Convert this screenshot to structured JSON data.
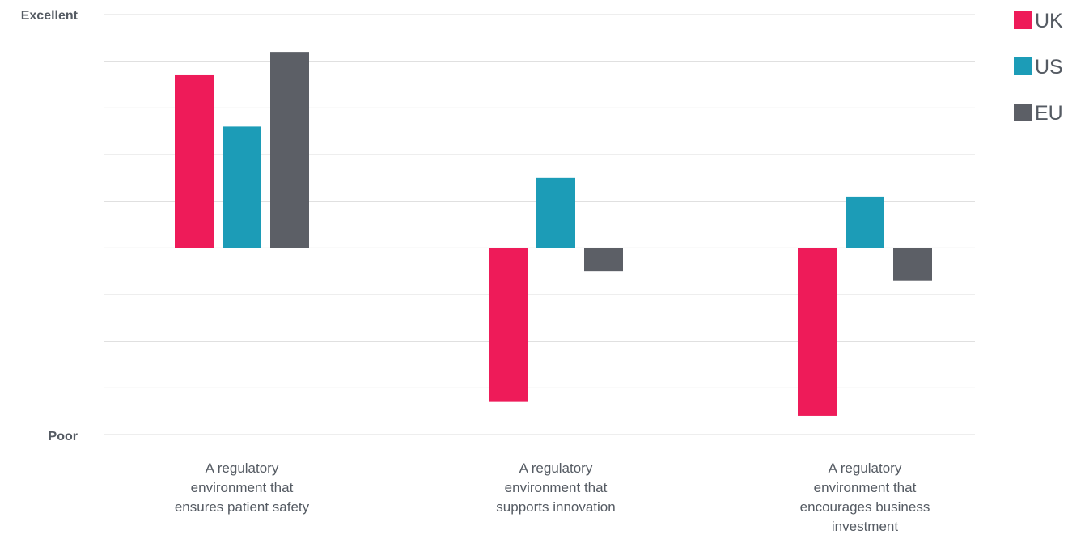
{
  "chart_data": {
    "type": "bar",
    "categories": [
      [
        "A regulatory",
        "environment that",
        "ensures patient safety"
      ],
      [
        "A regulatory",
        "environment that",
        "supports innovation"
      ],
      [
        "A regulatory",
        "environment that",
        "encourages business",
        "investment"
      ]
    ],
    "series": [
      {
        "name": "UK",
        "color": "#ee1b59",
        "values": [
          3.7,
          -3.3,
          -3.6
        ]
      },
      {
        "name": "US",
        "color": "#1c9cb7",
        "values": [
          2.6,
          1.5,
          1.1
        ]
      },
      {
        "name": "EU",
        "color": "#5c5f66",
        "values": [
          4.2,
          -0.5,
          -0.7
        ]
      }
    ],
    "ylim": [
      -4,
      5
    ],
    "y_tick_labels": {
      "top": "Excellent",
      "bottom": "Poor"
    },
    "grid": true,
    "legend_position": "top-right",
    "title": "",
    "xlabel": "",
    "ylabel": ""
  }
}
